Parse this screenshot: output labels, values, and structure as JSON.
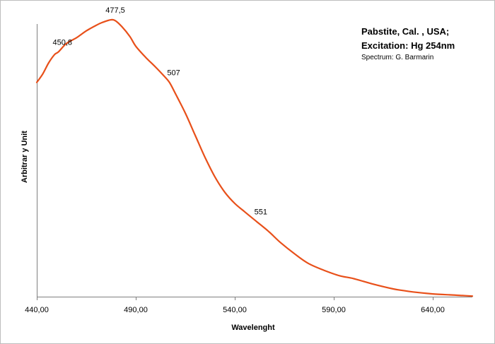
{
  "chart_data": {
    "type": "line",
    "title_lines": [
      "Pabstite, Cal. , USA;",
      "Excitation: Hg 254nm"
    ],
    "subtitle": "Spectrum: G. Barmarin",
    "xlabel": "Wavelenght",
    "ylabel": "Arbitrar y Unit",
    "xlim": [
      440,
      660
    ],
    "ylim": [
      0,
      1
    ],
    "x_ticks": [
      440,
      490,
      540,
      590,
      640
    ],
    "x_tick_labels": [
      "440,00",
      "490,00",
      "540,00",
      "590,00",
      "640,00"
    ],
    "grid": false,
    "legend": "none",
    "color": "#E8501A",
    "series": [
      {
        "x": [
          440,
          443,
          446,
          449,
          451,
          455,
          460,
          465,
          470,
          473,
          477.5,
          480,
          483,
          487,
          490,
          495,
          500,
          504,
          507,
          510,
          515,
          520,
          525,
          530,
          535,
          540,
          545,
          551,
          557,
          563,
          570,
          577,
          585,
          593,
          600,
          610,
          620,
          625,
          630,
          640,
          650,
          655,
          660
        ],
        "y": [
          0.77,
          0.8,
          0.84,
          0.87,
          0.88,
          0.91,
          0.93,
          0.955,
          0.975,
          0.985,
          0.995,
          0.99,
          0.97,
          0.935,
          0.9,
          0.86,
          0.825,
          0.795,
          0.77,
          0.73,
          0.66,
          0.58,
          0.5,
          0.43,
          0.375,
          0.335,
          0.305,
          0.27,
          0.235,
          0.195,
          0.155,
          0.12,
          0.095,
          0.075,
          0.065,
          0.045,
          0.028,
          0.022,
          0.017,
          0.01,
          0.006,
          0.004,
          0.002
        ]
      }
    ],
    "annotations": [
      {
        "text": "450,8",
        "x": 450.8,
        "y": 0.88
      },
      {
        "text": "477,5",
        "x": 477.5,
        "y": 0.995
      },
      {
        "text": "507",
        "x": 507,
        "y": 0.77
      },
      {
        "text": "551",
        "x": 551,
        "y": 0.27
      }
    ]
  }
}
